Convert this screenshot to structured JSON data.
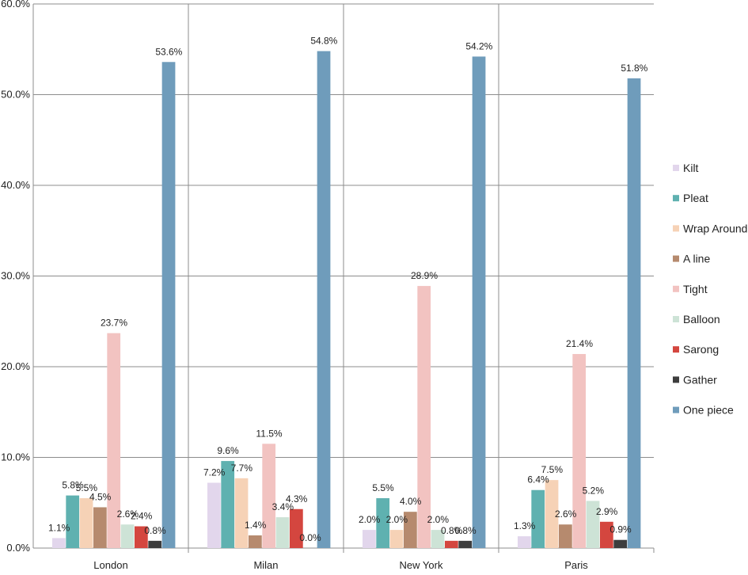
{
  "chart_data": {
    "type": "bar",
    "title": "",
    "xlabel": "",
    "ylabel": "",
    "categories": [
      "London",
      "Milan",
      "New York",
      "Paris"
    ],
    "ylim": [
      0,
      60
    ],
    "yticks": [
      "0.0%",
      "10.0%",
      "20.0%",
      "30.0%",
      "40.0%",
      "50.0%",
      "60.0%"
    ],
    "grid": true,
    "legend_position": "right",
    "series": [
      {
        "name": "Kilt",
        "color": "#e2d6ec",
        "values": [
          1.1,
          7.2,
          2.0,
          1.3
        ],
        "labels": [
          "1.1%",
          "7.2%",
          "2.0%",
          "1.3%"
        ]
      },
      {
        "name": "Pleat",
        "color": "#5fb1b0",
        "values": [
          5.8,
          9.6,
          5.5,
          6.4
        ],
        "labels": [
          "5.8%",
          "9.6%",
          "5.5%",
          "6.4%"
        ]
      },
      {
        "name": "Wrap Around",
        "color": "#f6d2b6",
        "values": [
          5.5,
          7.7,
          2.0,
          7.5
        ],
        "labels": [
          "5.5%",
          "7.7%",
          "2.0%",
          "7.5%"
        ]
      },
      {
        "name": "A line",
        "color": "#b68a6e",
        "values": [
          4.5,
          1.4,
          4.0,
          2.6
        ],
        "labels": [
          "4.5%",
          "1.4%",
          "4.0%",
          "2.6%"
        ]
      },
      {
        "name": "Tight",
        "color": "#f2c3c1",
        "values": [
          23.7,
          11.5,
          28.9,
          21.4
        ],
        "labels": [
          "23.7%",
          "11.5%",
          "28.9%",
          "21.4%"
        ]
      },
      {
        "name": "Balloon",
        "color": "#cde3d6",
        "values": [
          2.6,
          3.4,
          2.0,
          5.2
        ],
        "labels": [
          "2.6%",
          "3.4%",
          "2.0%",
          "5.2%"
        ]
      },
      {
        "name": "Sarong",
        "color": "#d4463f",
        "values": [
          2.4,
          4.3,
          0.8,
          2.9
        ],
        "labels": [
          "2.4%",
          "4.3%",
          "0.8%",
          "2.9%"
        ]
      },
      {
        "name": "Gather",
        "color": "#3d3d3d",
        "values": [
          0.8,
          0.0,
          0.8,
          0.9
        ],
        "labels": [
          "0.8%",
          "0.0%",
          "0.8%",
          "0.9%"
        ]
      },
      {
        "name": "One piece",
        "color": "#6f9cbb",
        "values": [
          53.6,
          54.8,
          54.2,
          51.8
        ],
        "labels": [
          "53.6%",
          "54.8%",
          "54.2%",
          "51.8%"
        ]
      }
    ]
  }
}
